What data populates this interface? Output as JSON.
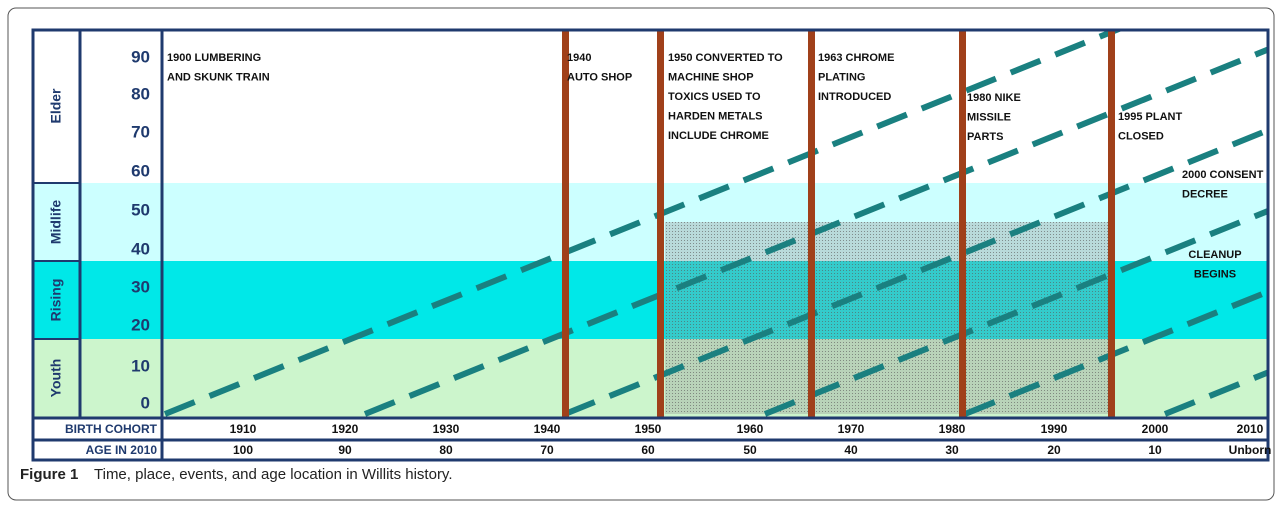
{
  "figure": {
    "groups": [
      "Elder",
      "Midlife",
      "Rising",
      "Youth"
    ],
    "age_ticks": [
      90,
      80,
      70,
      60,
      50,
      40,
      30,
      20,
      10,
      0
    ],
    "events": [
      {
        "lines": [
          "1900 LUMBERING",
          "AND SKUNK TRAIN"
        ]
      },
      {
        "lines": [
          "1940",
          "AUTO SHOP"
        ]
      },
      {
        "lines": [
          "1950 CONVERTED TO",
          "MACHINE SHOP",
          "TOXICS USED TO",
          "HARDEN METALS",
          "INCLUDE CHROME"
        ]
      },
      {
        "lines": [
          "1963 CHROME",
          "PLATING",
          "INTRODUCED"
        ]
      },
      {
        "lines": [
          "1980 NIKE",
          "MISSILE",
          "PARTS"
        ]
      },
      {
        "lines": [
          "1995 PLANT",
          "CLOSED"
        ]
      },
      {
        "lines": [
          "2000 CONSENT",
          "DECREE"
        ]
      },
      {
        "lines": [
          "CLEANUP",
          "BEGINS"
        ]
      }
    ],
    "rows": {
      "birth_cohort": {
        "label": "BIRTH COHORT",
        "values": [
          1910,
          1920,
          1930,
          1940,
          1950,
          1960,
          1970,
          1980,
          1990,
          2000,
          2010
        ]
      },
      "age_in_2010": {
        "label": "AGE IN 2010",
        "values": [
          100,
          90,
          80,
          70,
          60,
          50,
          40,
          30,
          20,
          10,
          "Unborn"
        ]
      }
    },
    "caption": {
      "label": "Figure 1",
      "text": "Time, place, events, and age location in Willits history."
    }
  }
}
